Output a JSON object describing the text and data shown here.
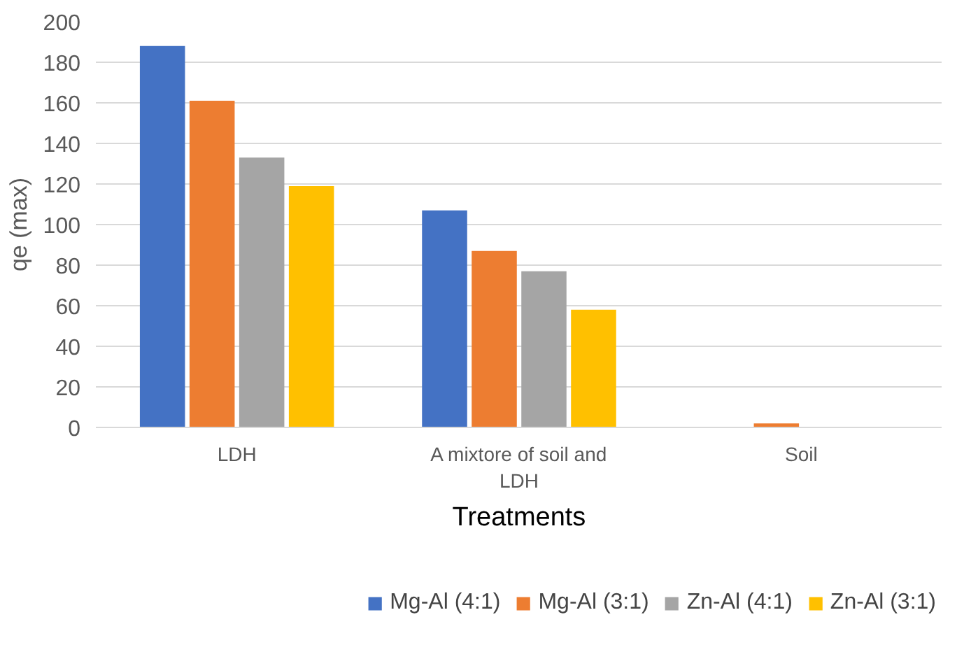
{
  "chart_data": {
    "type": "bar",
    "xlabel": "Treatments",
    "ylabel": "qe (max)",
    "categories": [
      "LDH",
      "A mixtore of soil and LDH",
      "Soil"
    ],
    "series": [
      {
        "name": "Mg-Al (4:1)",
        "color": "#4472c4",
        "values": [
          188,
          107,
          0
        ]
      },
      {
        "name": "Mg-Al (3:1)",
        "color": "#ed7d31",
        "values": [
          161,
          87,
          2
        ]
      },
      {
        "name": "Zn-Al (4:1)",
        "color": "#a5a5a5",
        "values": [
          133,
          77,
          0
        ]
      },
      {
        "name": "Zn-Al (3:1)",
        "color": "#ffc000",
        "values": [
          119,
          58,
          0
        ]
      }
    ],
    "ylim": [
      0,
      200
    ],
    "yticks": [
      0,
      20,
      40,
      60,
      80,
      100,
      120,
      140,
      160,
      180,
      200
    ],
    "grid": "y",
    "legend": "bottom"
  }
}
